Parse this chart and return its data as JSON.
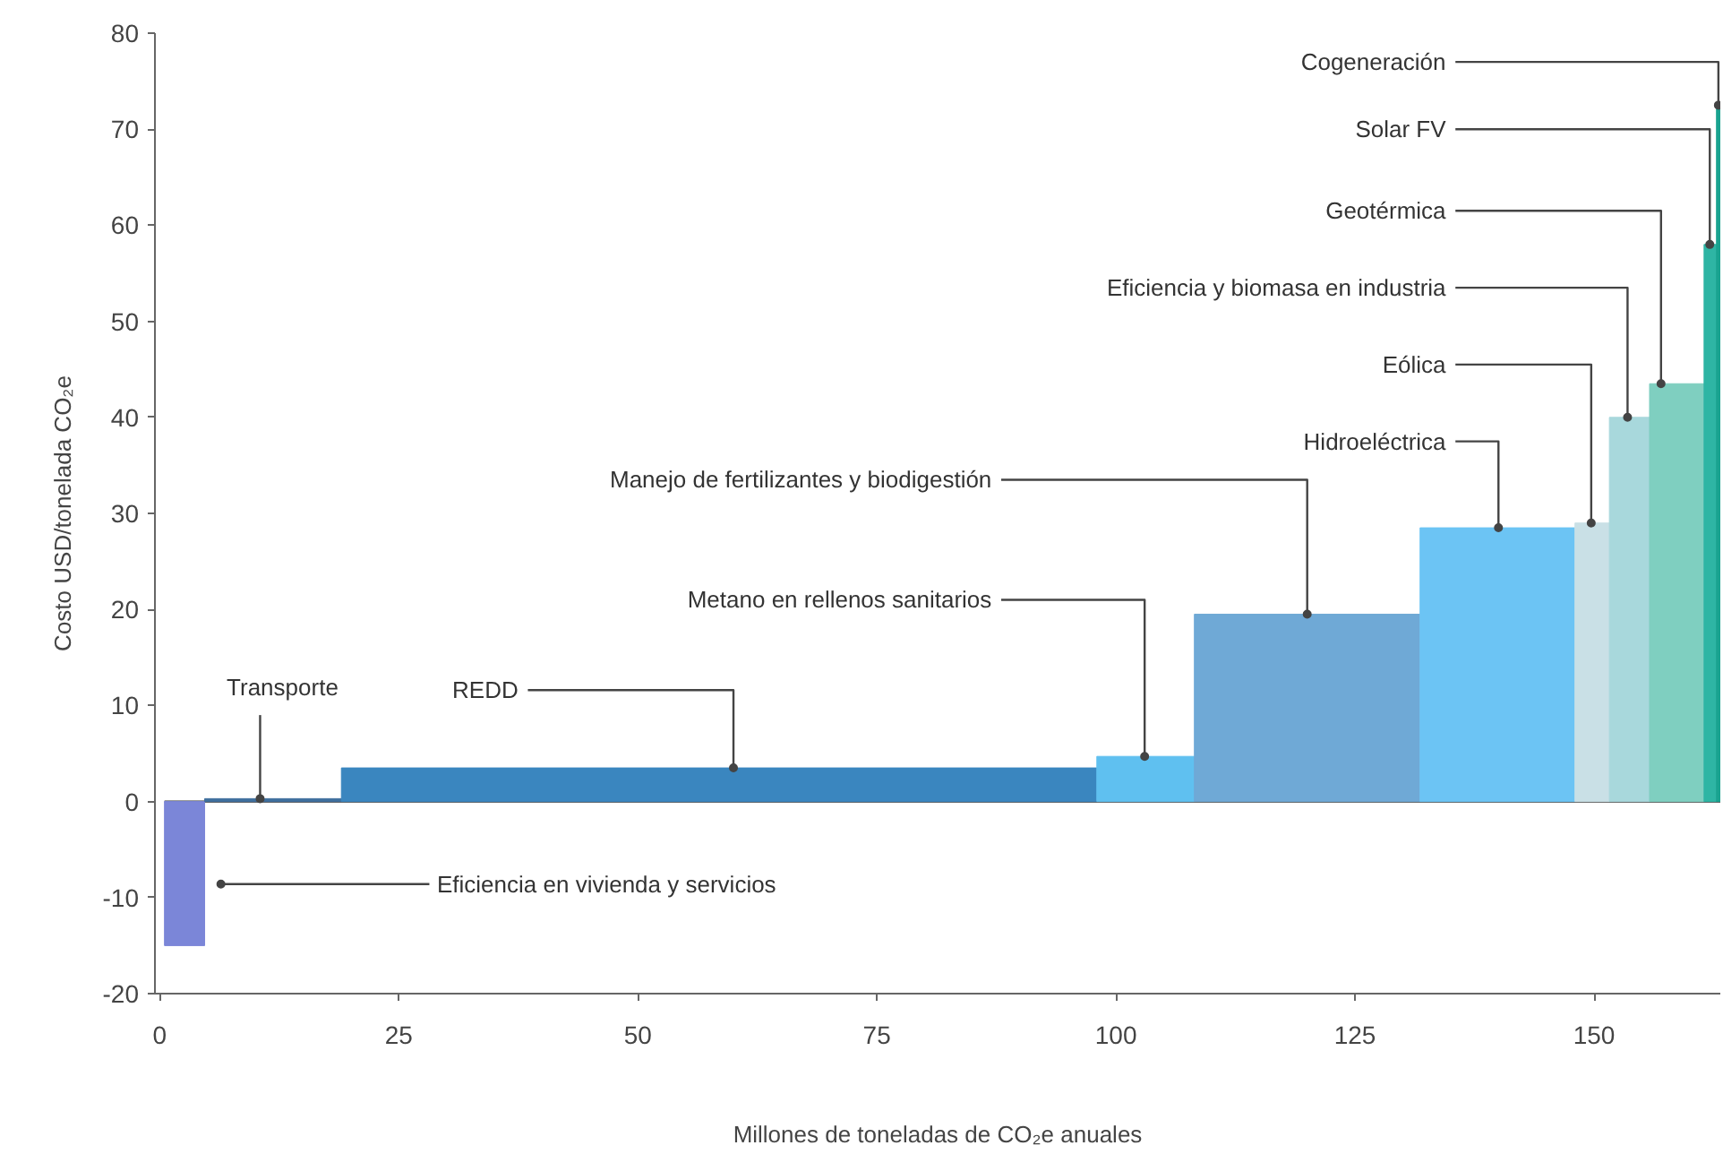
{
  "chart_data": {
    "type": "histogram",
    "xlabel": "Millones de toneladas de CO₂e anuales",
    "ylabel": "Costo USD/tonelada CO₂e",
    "bins": [
      0.5,
      4.7,
      19,
      98,
      108.2,
      131.8,
      148,
      151.6,
      155.8,
      161.5,
      162.8,
      163.2
    ],
    "values": [
      -15,
      0.3,
      3.5,
      4.7,
      19.5,
      28.5,
      29,
      40,
      43.5,
      58,
      72.5
    ],
    "colors": [
      "#7b86d8",
      "#3f6f9e",
      "#3a86bf",
      "#5fc0f0",
      "#6fa9d6",
      "#6cc4f4",
      "#c9e0e6",
      "#a8d8dc",
      "#7fcfc0",
      "#2eb5a4",
      "#1aa390"
    ],
    "xlim": [
      -0.5,
      163.2
    ],
    "ylim": [
      -20,
      80
    ],
    "xticks": [
      0,
      25,
      50,
      75,
      100,
      125,
      150
    ],
    "yticks": [
      -20,
      -10,
      0,
      10,
      20,
      30,
      40,
      50,
      60,
      70,
      80
    ],
    "grid": false,
    "ref_lines": [
      {
        "axis": "y",
        "value": 0,
        "color": "#333333"
      }
    ],
    "annotations": [
      {
        "text": "Cogeneración",
        "x": 163,
        "y": 72.5
      },
      {
        "text": "Solar FV",
        "x": 162.1,
        "y": 58
      },
      {
        "text": "Geotérmica",
        "x": 157,
        "y": 43.5
      },
      {
        "text": "Eficiencia y biomasa en industria",
        "x": 153.5,
        "y": 40
      },
      {
        "text": "Eólica",
        "x": 149.7,
        "y": 29
      },
      {
        "text": "Hidroeléctrica",
        "x": 140,
        "y": 28.5
      },
      {
        "text": "Manejo de fertilizantes y biodigestión",
        "x": 120,
        "y": 19.5
      },
      {
        "text": "Metano en rellenos sanitarios",
        "x": 103,
        "y": 4.7
      },
      {
        "text": "REDD",
        "x": 60,
        "y": 3.5
      },
      {
        "text": "Transporte",
        "x": 10.5,
        "y": 0.3
      },
      {
        "text": "Eficiencia en vivienda y servicios",
        "x": 6.4,
        "y": -8.6
      }
    ]
  }
}
